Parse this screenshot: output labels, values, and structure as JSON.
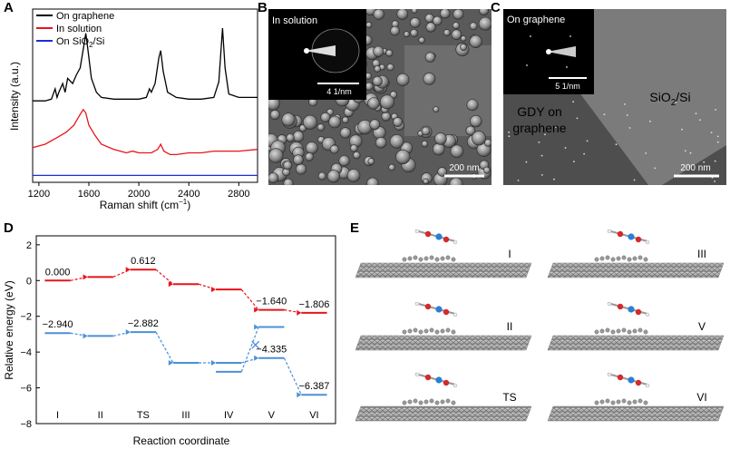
{
  "panels": {
    "A": {
      "letter": "A",
      "legend": [
        {
          "label": "On graphene",
          "color": "#000000"
        },
        {
          "label": "In solution",
          "color": "#e8141b"
        },
        {
          "label": "On SiO",
          "sub": "2",
          "tail": "/Si",
          "color": "#1a2fd6"
        }
      ],
      "xlabel_main": "Raman shift (cm",
      "xlabel_sup": "−1",
      "xlabel_end": ")",
      "ylabel": "Intensity (a.u.)"
    },
    "B": {
      "letter": "B",
      "label": "In solution",
      "inset_scale": "4 1/nm",
      "scale": "200 nm"
    },
    "C": {
      "letter": "C",
      "label": "On graphene",
      "inset_scale": "5 1/nm",
      "region_left_1": "GDY on",
      "region_left_2": "graphene",
      "region_right_main": "SiO",
      "region_right_sub": "2",
      "region_right_tail": "/Si",
      "scale": "200 nm"
    },
    "D": {
      "letter": "D",
      "xlabel": "Reaction coordinate",
      "ylabel": "Relative energy (eV)"
    },
    "E": {
      "letter": "E",
      "structures": [
        {
          "label": "I"
        },
        {
          "label": "III"
        },
        {
          "label": "II"
        },
        {
          "label": "V"
        },
        {
          "label": "TS"
        },
        {
          "label": "VI"
        }
      ]
    }
  },
  "chart_data": [
    {
      "panel": "A",
      "type": "line",
      "xlabel": "Raman shift (cm−1)",
      "ylabel": "Intensity (a.u.)",
      "xlim": [
        1150,
        2950
      ],
      "ylim": [
        0,
        1
      ],
      "xticks": [
        1200,
        1600,
        2000,
        2400,
        2800
      ],
      "yticks_shown": false,
      "legend_position": "top-left",
      "series": [
        {
          "name": "On graphene",
          "color": "#000000",
          "x": [
            1150,
            1250,
            1300,
            1330,
            1345,
            1360,
            1390,
            1410,
            1430,
            1470,
            1500,
            1530,
            1560,
            1575,
            1590,
            1620,
            1660,
            1700,
            1800,
            1900,
            2000,
            2060,
            2085,
            2100,
            2130,
            2160,
            2175,
            2195,
            2230,
            2300,
            2400,
            2500,
            2600,
            2640,
            2670,
            2690,
            2720,
            2800,
            2900,
            2950
          ],
          "y": [
            0.47,
            0.47,
            0.48,
            0.54,
            0.49,
            0.52,
            0.57,
            0.52,
            0.6,
            0.57,
            0.62,
            0.66,
            0.79,
            0.86,
            0.78,
            0.6,
            0.52,
            0.49,
            0.48,
            0.48,
            0.48,
            0.49,
            0.54,
            0.52,
            0.57,
            0.72,
            0.76,
            0.64,
            0.52,
            0.49,
            0.48,
            0.48,
            0.49,
            0.58,
            0.89,
            0.66,
            0.51,
            0.49,
            0.49,
            0.49
          ]
        },
        {
          "name": "In solution",
          "color": "#e8141b",
          "x": [
            1150,
            1250,
            1350,
            1420,
            1480,
            1520,
            1555,
            1575,
            1600,
            1650,
            1700,
            1800,
            1900,
            1950,
            2000,
            2100,
            2150,
            2175,
            2200,
            2250,
            2300,
            2400,
            2500,
            2600,
            2700,
            2800,
            2950
          ],
          "y": [
            0.2,
            0.22,
            0.26,
            0.29,
            0.33,
            0.38,
            0.42,
            0.4,
            0.33,
            0.27,
            0.22,
            0.19,
            0.17,
            0.18,
            0.17,
            0.17,
            0.19,
            0.22,
            0.18,
            0.16,
            0.16,
            0.17,
            0.17,
            0.18,
            0.18,
            0.18,
            0.19
          ]
        },
        {
          "name": "On SiO2/Si",
          "color": "#1a2fd6",
          "x": [
            1150,
            2950
          ],
          "y": [
            0.04,
            0.04
          ]
        }
      ]
    },
    {
      "panel": "D",
      "type": "line",
      "xlabel": "Reaction coordinate",
      "ylabel": "Relative energy (eV)",
      "categories": [
        "I",
        "II",
        "TS",
        "III",
        "IV",
        "V",
        "VI"
      ],
      "ylim": [
        -8,
        2.5
      ],
      "yticks": [
        2,
        0,
        -2,
        -4,
        -6,
        -8
      ],
      "series": [
        {
          "color": "#e8141b",
          "values": [
            0.0,
            0.2,
            0.612,
            -0.2,
            -0.5,
            -1.64,
            -1.806
          ],
          "labels": [
            "0.000",
            null,
            "0.612",
            null,
            null,
            "−1.640",
            "−1.806"
          ]
        },
        {
          "color": "#4a90d9",
          "values": [
            -2.94,
            -3.1,
            -2.882,
            -4.6,
            -4.6,
            -4.335,
            -6.387
          ],
          "labels": [
            "−2.940",
            null,
            "−2.882",
            null,
            null,
            "−4.335",
            "−6.387"
          ]
        },
        {
          "color": "#4a90d9",
          "values": [
            null,
            null,
            null,
            null,
            -5.1,
            -2.6,
            null
          ],
          "labels": []
        }
      ],
      "crossing_marker": {
        "x_between": [
          "IV",
          "V"
        ],
        "y": -3.6
      }
    }
  ]
}
